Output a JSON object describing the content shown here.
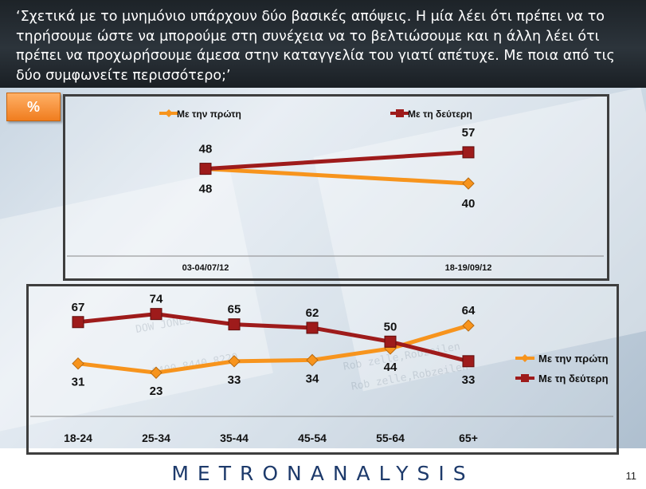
{
  "header": {
    "question": "‘Σχετικά με το μνημόνιο υπάρχουν δύο βασικές απόψεις. Η μία λέει ότι πρέπει να το τηρήσουμε ώστε να μπορούμε στη  συνέχεια να το βελτιώσουμε και η άλλη λέει ότι πρέπει να προχωρήσουμε άμεσα στην καταγγελία του γιατί απέτυχε. Με ποια από τις δύο συμφωνείτε περισσότερο;’"
  },
  "badge": {
    "label": "%"
  },
  "colors": {
    "first": "#f7941d",
    "second": "#9e1b1b",
    "panel_border": "#3e3e3e",
    "brand": "#1d3a6b"
  },
  "chart_data": [
    {
      "type": "line",
      "categories": [
        "03-04/07/12",
        "18-19/09/12"
      ],
      "series": [
        {
          "name": "Με την πρώτη",
          "values": [
            48,
            40
          ]
        },
        {
          "name": "Με τη δεύτερη",
          "values": [
            48,
            57
          ]
        }
      ],
      "legend": "top",
      "ylim": [
        20,
        70
      ],
      "grid": false
    },
    {
      "type": "line",
      "categories": [
        "18-24",
        "25-34",
        "35-44",
        "45-54",
        "55-64",
        "65+"
      ],
      "series": [
        {
          "name": "Με την πρώτη",
          "values": [
            31,
            23,
            33,
            34,
            44,
            64
          ]
        },
        {
          "name": "Με τη δεύτερη",
          "values": [
            67,
            74,
            65,
            62,
            50,
            33
          ]
        }
      ],
      "legend": "right",
      "ylim": [
        10,
        80
      ],
      "grid": false
    }
  ],
  "footer": {
    "brand": "METRONANALYSIS",
    "page_number": "11"
  }
}
